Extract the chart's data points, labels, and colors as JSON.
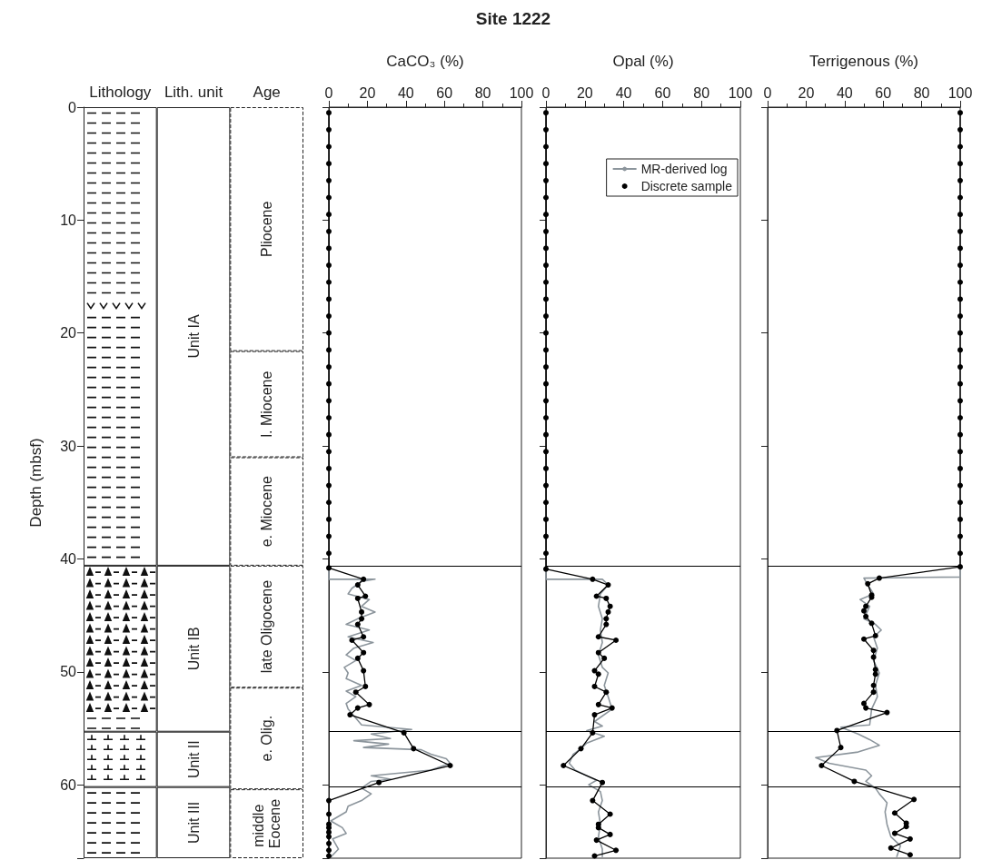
{
  "chart_data": [
    {
      "type": "bar",
      "stacked": true,
      "ylabel": "Depth (mbsf)",
      "categories": [
        "Lithology",
        "Lith. unit",
        "Age"
      ],
      "ylim": [
        66.5,
        0
      ],
      "yticks": [
        0,
        10,
        20,
        30,
        40,
        50,
        60
      ],
      "series": [
        {
          "name": "Unit IA",
          "color": "#ffffff",
          "values": [
            40.6,
            40.6,
            null
          ]
        },
        {
          "name": "Unit IB",
          "color": "#ffffff",
          "values": [
            14.7,
            14.7,
            null
          ]
        },
        {
          "name": "Unit II",
          "color": "#ffffff",
          "values": [
            4.9,
            4.9,
            null
          ]
        },
        {
          "name": "Unit III",
          "color": "#ffffff",
          "values": [
            6.3,
            6.3,
            null
          ]
        },
        {
          "name": "Pliocene",
          "color": "#ffffff",
          "line_style": "dashed",
          "values": [
            null,
            null,
            21.6
          ]
        },
        {
          "name": "l. Miocene",
          "color": "#ffffff",
          "line_style": "dashed",
          "values": [
            null,
            null,
            9.4
          ]
        },
        {
          "name": "e. Miocene",
          "color": "#ffffff",
          "line_style": "dashed",
          "values": [
            null,
            null,
            9.6
          ]
        },
        {
          "name": "late Oligocene",
          "color": "#ffffff",
          "line_style": "dashed",
          "values": [
            null,
            null,
            10.8
          ]
        },
        {
          "name": "e. Olig.",
          "color": "#ffffff",
          "line_style": "dashed",
          "values": [
            null,
            null,
            9.0
          ]
        },
        {
          "name": "middle Eocene",
          "color": "#ffffff",
          "line_style": "dashed",
          "values": [
            null,
            null,
            6.1
          ]
        }
      ]
    },
    {
      "type": "line",
      "title": "Site 1222",
      "xlabel": "CaCO₃ (%)",
      "xlim": [
        0,
        100
      ],
      "xticks": [
        0,
        20,
        40,
        60,
        80,
        100
      ],
      "ylim": [
        66.5,
        0
      ],
      "yticks": [
        0,
        10,
        20,
        30,
        40,
        50,
        60
      ],
      "tick_labels": "x",
      "legend": false,
      "ref_lines": [
        {
          "axis": "y",
          "value": 40.6
        },
        {
          "axis": "y",
          "value": 55.3
        },
        {
          "axis": "y",
          "value": 60.2
        }
      ],
      "series": [
        {
          "color": "#8c959c",
          "marker": "none",
          "x": [
            0,
            0,
            24,
            17,
            12,
            10,
            21,
            17,
            24,
            15,
            9,
            21,
            10,
            23,
            13,
            9,
            14,
            8,
            10,
            9,
            17,
            9,
            14,
            9,
            10,
            17,
            43,
            22,
            32,
            13,
            31,
            18,
            48,
            53,
            61,
            63,
            53,
            22,
            32,
            22,
            17,
            22,
            17,
            10,
            9,
            1,
            7,
            9,
            2,
            5,
            1
          ],
          "values": [
            41.0,
            41.8,
            41.8,
            42.0,
            42.6,
            43.1,
            43.6,
            44.2,
            44.7,
            45.3,
            45.8,
            46.3,
            46.9,
            47.4,
            47.9,
            48.5,
            49.0,
            49.6,
            50.1,
            50.6,
            51.2,
            51.7,
            52.2,
            52.8,
            53.3,
            54.7,
            55.1,
            55.5,
            55.9,
            56.1,
            56.4,
            56.7,
            56.9,
            57.3,
            57.7,
            58.1,
            58.7,
            59.2,
            59.5,
            59.7,
            60.3,
            60.8,
            61.4,
            61.9,
            62.4,
            63.2,
            63.8,
            64.3,
            64.8,
            65.7,
            66.4
          ]
        },
        {
          "color": "#000000",
          "marker": "circle",
          "x": [
            0,
            0,
            0,
            0,
            0,
            0,
            0,
            0,
            0,
            0,
            0,
            0,
            0,
            0,
            0,
            0,
            0,
            0,
            0,
            0,
            0,
            0,
            0,
            0,
            0,
            0,
            0,
            0,
            18,
            15,
            19,
            15,
            17,
            17,
            15,
            18,
            12,
            18,
            15,
            18,
            19,
            14,
            21,
            15,
            11,
            39,
            44,
            63,
            26,
            0,
            0,
            0,
            0,
            0,
            0,
            0,
            0,
            0
          ],
          "values": [
            0.5,
            2,
            3.5,
            5,
            6.5,
            8,
            9.5,
            11,
            12.5,
            14,
            15.5,
            17,
            18.5,
            20,
            21.5,
            23,
            24.5,
            26,
            27.5,
            29,
            30.5,
            32,
            33.5,
            35,
            36.5,
            38,
            39.5,
            40.8,
            41.8,
            42.3,
            43.3,
            43.5,
            44.7,
            45.3,
            45.8,
            46.9,
            47.2,
            48.3,
            48.8,
            49.9,
            51.3,
            51.8,
            52.9,
            53.2,
            53.8,
            55.4,
            56.8,
            58.3,
            59.8,
            61.4,
            62.6,
            63.5,
            63.8,
            64.2,
            64.6,
            65.2,
            65.8,
            66.3
          ]
        }
      ]
    },
    {
      "type": "line",
      "xlabel": "Opal (%)",
      "xlim": [
        0,
        100
      ],
      "xticks": [
        0,
        20,
        40,
        60,
        80,
        100
      ],
      "ylim": [
        66.5,
        0
      ],
      "yticks": [
        0,
        10,
        20,
        30,
        40,
        50,
        60
      ],
      "tick_labels": "x",
      "legend": "top right",
      "ref_lines": [
        {
          "axis": "y",
          "value": 40.6
        },
        {
          "axis": "y",
          "value": 55.3
        },
        {
          "axis": "y",
          "value": 60.2
        }
      ],
      "series": [
        {
          "name": "MR-derived log",
          "color": "#8c959c",
          "marker": "none",
          "x": [
            0,
            0,
            29,
            32,
            28,
            27,
            29,
            28,
            29,
            27,
            29,
            32,
            30,
            32,
            34,
            25,
            29,
            21,
            30,
            21,
            18,
            14,
            12,
            15,
            21,
            26,
            22,
            28,
            29,
            27,
            28,
            27,
            29,
            29
          ],
          "values": [
            40.9,
            41.8,
            41.8,
            42.3,
            43.1,
            44.2,
            45.3,
            46.3,
            47.4,
            48.5,
            49.6,
            50.1,
            51.2,
            52.2,
            53.3,
            54.4,
            54.8,
            55.2,
            55.7,
            56.3,
            56.8,
            57.3,
            58.1,
            58.7,
            59.2,
            59.6,
            60.0,
            60.6,
            61.4,
            62.4,
            63.5,
            64.6,
            65.7,
            66.4
          ]
        },
        {
          "name": "Discrete sample",
          "color": "#000000",
          "marker": "circle",
          "x": [
            0,
            0,
            0,
            0,
            0,
            0,
            0,
            0,
            0,
            0,
            0,
            0,
            0,
            0,
            0,
            0,
            0,
            0,
            0,
            0,
            0,
            0,
            0,
            0,
            0,
            0,
            0,
            0,
            24,
            32,
            26,
            31,
            33,
            32,
            31,
            31,
            27,
            36,
            27,
            30,
            25,
            27,
            25,
            31,
            27,
            34,
            25,
            24,
            18,
            9,
            29,
            24,
            33,
            27,
            27,
            33,
            26,
            36,
            25
          ],
          "values": [
            0.5,
            2,
            3.5,
            5,
            6.5,
            8,
            9.5,
            11,
            12.5,
            14,
            15.5,
            17,
            18.5,
            20,
            21.5,
            23,
            24.5,
            26,
            27.5,
            29,
            30.5,
            32,
            33.5,
            35,
            36.5,
            38,
            39.5,
            40.9,
            41.8,
            42.3,
            43.3,
            43.5,
            44.2,
            44.7,
            45.3,
            45.8,
            46.9,
            47.2,
            48.3,
            48.8,
            49.9,
            50.2,
            51.3,
            51.8,
            52.9,
            53.2,
            53.8,
            55.4,
            56.8,
            58.3,
            59.8,
            61.4,
            62.6,
            63.5,
            63.8,
            64.4,
            64.9,
            65.8,
            66.3
          ]
        }
      ]
    },
    {
      "type": "line",
      "xlabel": "Terrigenous (%)",
      "xlim": [
        0,
        100
      ],
      "xticks": [
        0,
        20,
        40,
        60,
        80,
        100
      ],
      "ylim": [
        66.5,
        0
      ],
      "yticks": [
        0,
        10,
        20,
        30,
        40,
        50,
        60
      ],
      "tick_labels": "x",
      "legend": false,
      "ref_lines": [
        {
          "axis": "y",
          "value": 40.6
        },
        {
          "axis": "y",
          "value": 55.3
        },
        {
          "axis": "y",
          "value": 60.2
        }
      ],
      "series": [
        {
          "color": "#8c959c",
          "marker": "none",
          "x": [
            100,
            100,
            50,
            52,
            55,
            48,
            53,
            50,
            56,
            59,
            55,
            57,
            55,
            58,
            56,
            57,
            54,
            53,
            38,
            47,
            53,
            58,
            47,
            25,
            32,
            51,
            54,
            51,
            56,
            58,
            62,
            61,
            62,
            64,
            69,
            67
          ],
          "values": [
            40.7,
            41.6,
            41.7,
            42.3,
            43.1,
            43.6,
            44.2,
            45.3,
            45.8,
            46.3,
            46.9,
            47.9,
            49.0,
            50.1,
            51.2,
            52.2,
            53.3,
            54.7,
            54.9,
            55.5,
            56.0,
            56.5,
            57.1,
            57.6,
            58.1,
            58.7,
            59.2,
            59.7,
            60.3,
            60.8,
            61.6,
            62.4,
            63.5,
            64.6,
            65.4,
            66.4
          ]
        },
        {
          "color": "#000000",
          "marker": "circle",
          "x": [
            100,
            100,
            100,
            100,
            100,
            100,
            100,
            100,
            100,
            100,
            100,
            100,
            100,
            100,
            100,
            100,
            100,
            100,
            100,
            100,
            100,
            100,
            100,
            100,
            100,
            100,
            100,
            100,
            58,
            52,
            54,
            54,
            51,
            50,
            51,
            54,
            56,
            50,
            55,
            55,
            56,
            56,
            55,
            55,
            50,
            51,
            62,
            36,
            38,
            28,
            45,
            76,
            66,
            72,
            72,
            66,
            74,
            64,
            74
          ],
          "values": [
            0.5,
            2,
            3.5,
            5,
            6.5,
            8,
            9.5,
            11,
            12.5,
            14,
            15.5,
            17,
            18.5,
            20,
            21.5,
            23,
            24.5,
            26,
            27.5,
            29,
            30.5,
            32,
            33.5,
            35,
            36.5,
            38,
            39.5,
            40.7,
            41.7,
            42.2,
            43.2,
            43.4,
            44.2,
            44.6,
            45.1,
            45.7,
            46.8,
            47.1,
            48.1,
            48.7,
            49.8,
            50.2,
            51.2,
            51.8,
            52.8,
            53.2,
            53.6,
            55.2,
            56.7,
            58.3,
            59.7,
            61.3,
            62.5,
            63.4,
            63.7,
            64.3,
            64.8,
            65.6,
            66.2
          ]
        }
      ]
    }
  ]
}
